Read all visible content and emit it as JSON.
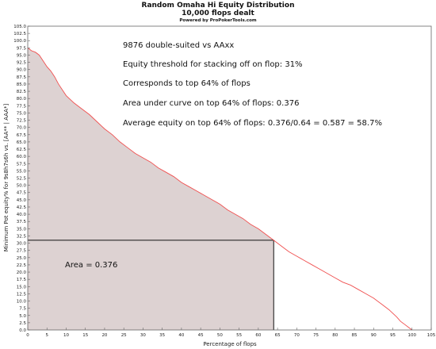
{
  "chart_data": {
    "type": "area",
    "title": "Random Omaha Hi Equity Distribution",
    "subtitle": "10,000 flops dealt",
    "powered_by": "Powered by ProPokerTools.com",
    "xlabel": "Percentage of flops",
    "ylabel": "Minimum Pot equity% for 9s8h7s6h vs. [AA** | AAA*]",
    "xlim": [
      0,
      105
    ],
    "ylim": [
      0,
      105
    ],
    "x_ticks": [
      "0",
      "5",
      "10",
      "15",
      "20",
      "25",
      "30",
      "35",
      "40",
      "45",
      "50",
      "55",
      "60",
      "65",
      "70",
      "75",
      "80",
      "85",
      "90",
      "95",
      "100",
      "105"
    ],
    "y_ticks": [
      "0.0",
      "2.5",
      "5.0",
      "7.5",
      "10.0",
      "12.5",
      "15.0",
      "17.5",
      "20.0",
      "22.5",
      "25.0",
      "27.5",
      "30.0",
      "32.5",
      "35.0",
      "37.5",
      "40.0",
      "42.5",
      "45.0",
      "47.5",
      "50.0",
      "52.5",
      "55.0",
      "57.5",
      "60.0",
      "62.5",
      "65.0",
      "67.5",
      "70.0",
      "72.5",
      "75.0",
      "77.5",
      "80.0",
      "82.5",
      "85.0",
      "87.5",
      "90.0",
      "92.5",
      "95.0",
      "97.5",
      "100.0",
      "102.5",
      "105.0"
    ],
    "grid": false,
    "series": [
      {
        "x": [
          0,
          1,
          2,
          3,
          4,
          5,
          6,
          7,
          8,
          9,
          10,
          12,
          14,
          16,
          18,
          20,
          22,
          24,
          26,
          28,
          30,
          32,
          34,
          36,
          38,
          40,
          42,
          44,
          46,
          48,
          50,
          52,
          54,
          56,
          58,
          60,
          62,
          64,
          66,
          68,
          70,
          72,
          74,
          76,
          78,
          80,
          82,
          84,
          86,
          88,
          90,
          92,
          94,
          96,
          97,
          98,
          99,
          100
        ],
        "values": [
          97.5,
          96.5,
          96,
          95,
          93,
          91,
          89.5,
          87.5,
          85,
          83,
          81,
          78.5,
          76.5,
          74.5,
          72,
          69.5,
          67.5,
          65,
          63,
          61,
          59.5,
          58,
          56,
          54.5,
          53,
          51,
          49.5,
          48,
          46.5,
          45,
          43.5,
          41.5,
          40,
          38.5,
          36.5,
          35,
          33,
          31,
          29,
          27,
          25.5,
          24,
          22.5,
          21,
          19.5,
          18,
          16.5,
          15.5,
          14,
          12.5,
          11,
          9,
          7,
          4.5,
          3,
          2,
          1,
          0
        ],
        "color": "#f05050",
        "fill": "#ddd2d2"
      }
    ],
    "shaded_region": {
      "x_end": 64,
      "y_top": 31,
      "stroke": "#111111"
    },
    "annotations": [
      "9876 double-suited vs AAxx",
      "Equity threshold for stacking off on flop: 31%",
      "Corresponds to top 64% of flops",
      "Area under curve on top 64% of flops: 0.376",
      "Average equity on top 64% of flops: 0.376/0.64 = 0.587 = 58.7%"
    ],
    "area_label": "Area = 0.376"
  }
}
